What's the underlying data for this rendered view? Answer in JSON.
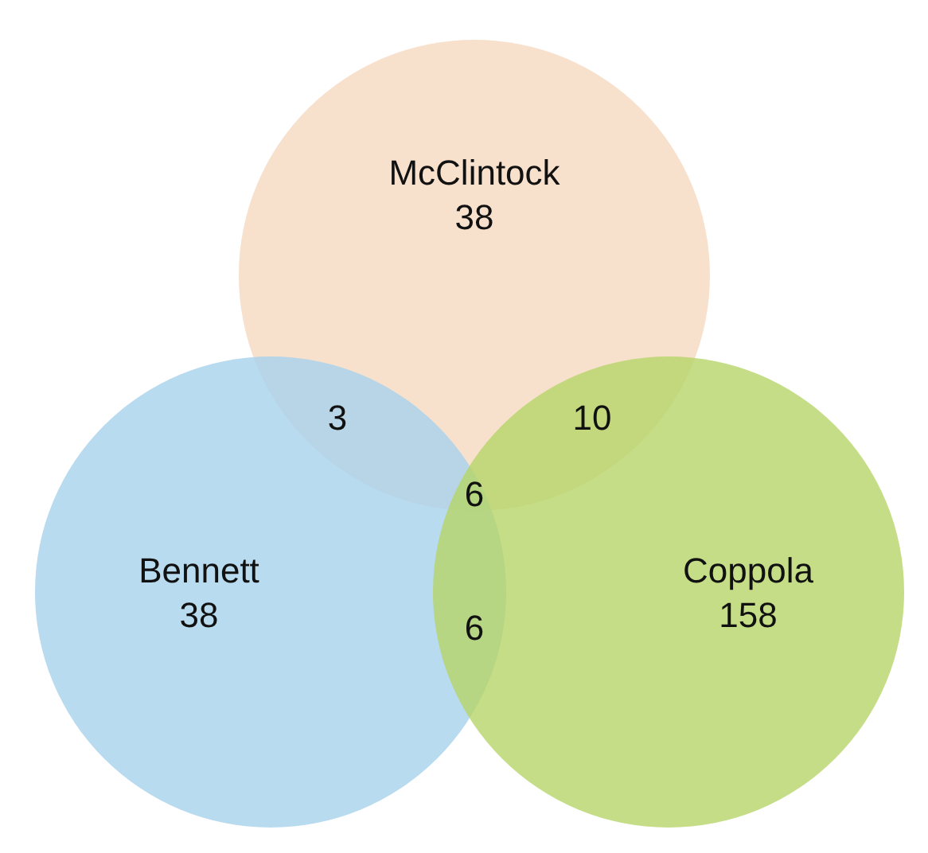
{
  "chart_data": {
    "type": "other",
    "series": [
      {
        "name": "McClintock",
        "color": "#f5d9c0",
        "values": [
          38
        ]
      },
      {
        "name": "Bennett",
        "color": "#a6d2ec",
        "values": [
          38
        ]
      },
      {
        "name": "Coppola",
        "color": "#b5d468",
        "values": [
          158
        ]
      }
    ],
    "annotations": [
      "3",
      "10",
      "6",
      "6"
    ],
    "data_labels": true
  }
}
